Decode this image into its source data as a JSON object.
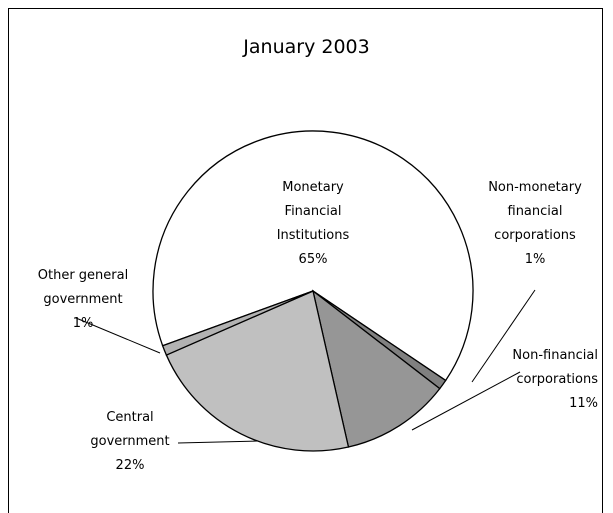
{
  "chart_data": {
    "type": "pie",
    "title": "January 2003",
    "categories": [
      "Monetary Financial Institutions",
      "Non-monetary financial corporations",
      "Non-financial corporations",
      "Central government",
      "Other general government"
    ],
    "values": [
      65,
      1,
      11,
      22,
      1
    ],
    "value_labels": [
      "65%",
      "1%",
      "11%",
      "22%",
      "1%"
    ],
    "colors": [
      "#ffffff",
      "#808080",
      "#969696",
      "#c0c0c0",
      "#b2b2b2"
    ]
  }
}
